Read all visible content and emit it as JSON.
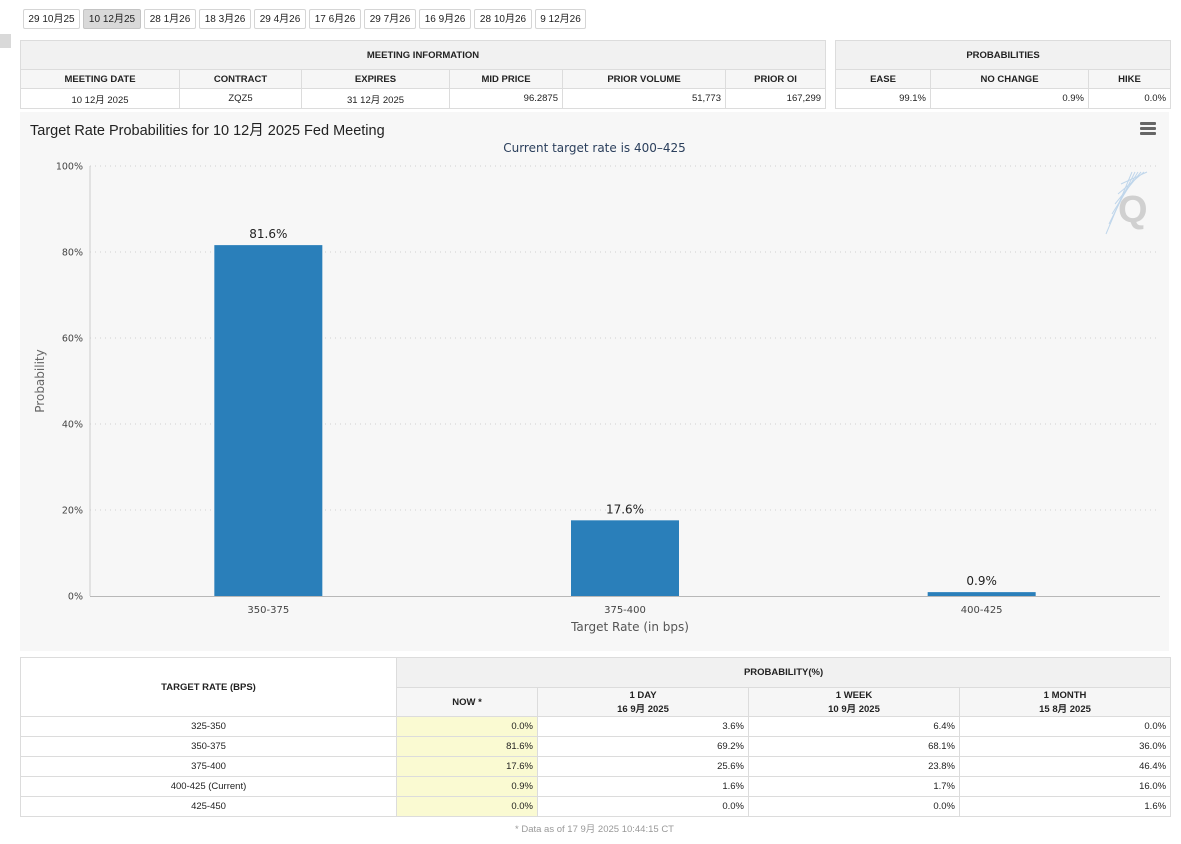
{
  "date_tabs": [
    "29 10月25",
    "10 12月25",
    "28 1月26",
    "18 3月26",
    "29 4月26",
    "17 6月26",
    "29 7月26",
    "16 9月26",
    "28 10月26",
    "9 12月26"
  ],
  "active_tab": "10 12月25",
  "meeting_info": {
    "title": "MEETING INFORMATION",
    "headers": {
      "meeting_date": "MEETING DATE",
      "contract": "CONTRACT",
      "expires": "EXPIRES",
      "mid_price": "MID PRICE",
      "prior_volume": "PRIOR VOLUME",
      "prior_oi": "PRIOR OI"
    },
    "values": {
      "meeting_date": "10 12月 2025",
      "contract": "ZQZ5",
      "expires": "31 12月 2025",
      "mid_price": "96.2875",
      "prior_volume": "51,773",
      "prior_oi": "167,299"
    }
  },
  "probabilities": {
    "title": "PROBABILITIES",
    "headers": {
      "ease": "EASE",
      "no_change": "NO CHANGE",
      "hike": "HIKE"
    },
    "values": {
      "ease": "99.1%",
      "no_change": "0.9%",
      "hike": "0.0%"
    }
  },
  "chart": {
    "title": "Target Rate Probabilities for 10 12月 2025 Fed Meeting",
    "subtitle": "Current target rate is 400–425",
    "watermark": "Q"
  },
  "chart_data": {
    "type": "bar",
    "title": "Target Rate Probabilities for 10 12月 2025 Fed Meeting",
    "subtitle": "Current target rate is 400–425",
    "categories": [
      "350-375",
      "375-400",
      "400-425"
    ],
    "values": [
      81.6,
      17.6,
      0.9
    ],
    "data_labels": [
      "81.6%",
      "17.6%",
      "0.9%"
    ],
    "xlabel": "Target Rate (in bps)",
    "ylabel": "Probability",
    "ylim": [
      0,
      100
    ],
    "yticks": [
      "0%",
      "20%",
      "40%",
      "60%",
      "80%",
      "100%"
    ],
    "grid": true,
    "bar_color": "#2a7fba"
  },
  "history_table": {
    "target_header": "TARGET RATE (BPS)",
    "prob_header": "PROBABILITY(%)",
    "columns": [
      {
        "label": "NOW *",
        "sub": ""
      },
      {
        "label": "1 DAY",
        "sub": "16 9月 2025"
      },
      {
        "label": "1 WEEK",
        "sub": "10 9月 2025"
      },
      {
        "label": "1 MONTH",
        "sub": "15 8月 2025"
      }
    ],
    "rows": [
      {
        "rate": "325-350",
        "values": [
          "0.0%",
          "3.6%",
          "6.4%",
          "0.0%"
        ]
      },
      {
        "rate": "350-375",
        "values": [
          "81.6%",
          "69.2%",
          "68.1%",
          "36.0%"
        ]
      },
      {
        "rate": "375-400",
        "values": [
          "17.6%",
          "25.6%",
          "23.8%",
          "46.4%"
        ]
      },
      {
        "rate": "400-425 (Current)",
        "values": [
          "0.9%",
          "1.6%",
          "1.7%",
          "16.0%"
        ]
      },
      {
        "rate": "425-450",
        "values": [
          "0.0%",
          "0.0%",
          "0.0%",
          "1.6%"
        ]
      }
    ],
    "footnote": "* Data as of 17 9月 2025 10:44:15 CT"
  },
  "colors": {
    "now_highlight": "#fafad2",
    "accent": "#2a7fba",
    "subtitle": "#2b3f5c"
  }
}
